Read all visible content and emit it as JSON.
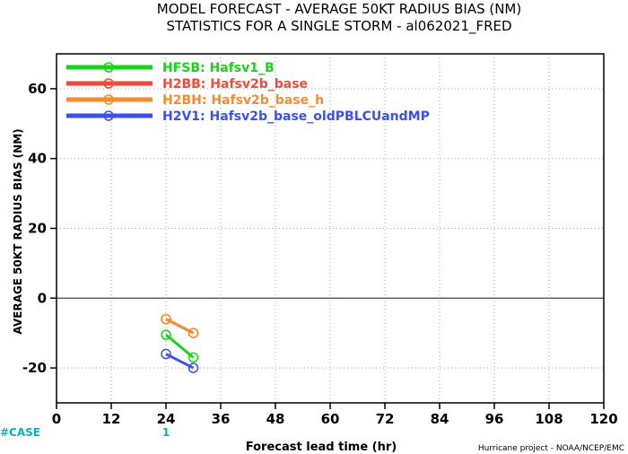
{
  "header": {
    "title_line1": "MODEL FORECAST - AVERAGE 50KT RADIUS BIAS (NM)",
    "title_line2": "STATISTICS FOR A SINGLE STORM - al062021_FRED"
  },
  "footer": {
    "case_label": "#CASE",
    "case_counts": [
      {
        "x": 24,
        "label": "1"
      }
    ],
    "credit": "Hurricane project - NOAA/NCEP/EMC"
  },
  "colors": {
    "zero_line": "#555555",
    "grid": "#aaaaaa",
    "case": "#00b4c8"
  },
  "chart_data": {
    "type": "line",
    "xlabel": "Forecast lead time (hr)",
    "ylabel": "AVERAGE 50KT RADIUS BIAS (NM)",
    "xlim": [
      0,
      120
    ],
    "ylim": [
      -30,
      70
    ],
    "xticks": [
      0,
      12,
      24,
      36,
      48,
      60,
      72,
      84,
      96,
      108,
      120
    ],
    "yticks": [
      -20,
      0,
      20,
      40,
      60
    ],
    "grid": true,
    "grid_style": "dotted",
    "legend_position": "top-left",
    "series": [
      {
        "name": "HFSB: Hafsv1_B",
        "color": "#19d219",
        "x": [
          24,
          30
        ],
        "y": [
          -10.5,
          -17
        ]
      },
      {
        "name": "H2BB: Hafsv2b_base",
        "color": "#f04b3c",
        "x": [
          24,
          30
        ],
        "y": [
          -6,
          -10
        ]
      },
      {
        "name": "H2BH: Hafsv2b_base_h",
        "color": "#f58c32",
        "x": [
          24,
          30
        ],
        "y": [
          -6,
          -10
        ]
      },
      {
        "name": "H2V1: Hafsv2b_base_oldPBLCUandMP",
        "color": "#3c50f0",
        "x": [
          24,
          30
        ],
        "y": [
          -16,
          -20
        ]
      }
    ]
  }
}
